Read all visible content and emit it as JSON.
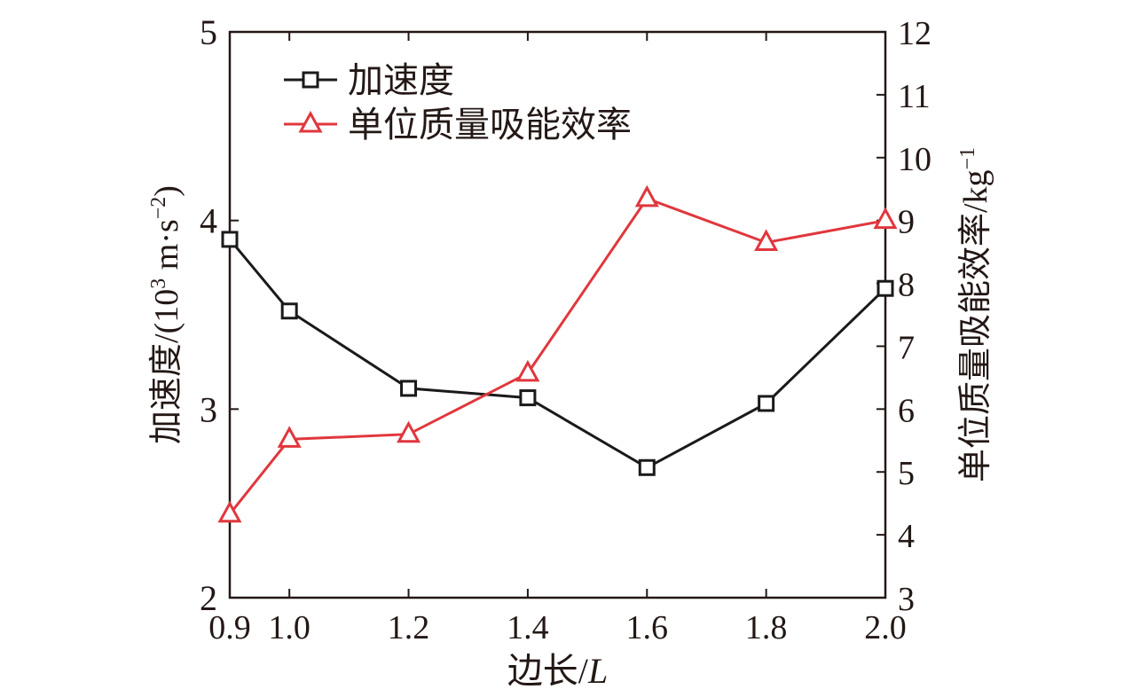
{
  "chart_data": {
    "type": "line",
    "title": "",
    "x": [
      "0.9",
      "1.0",
      "1.2",
      "1.4",
      "1.6",
      "1.8",
      "2.0"
    ],
    "xlabel": "边长/",
    "xlabel_italic": "L",
    "xlim": [
      0.9,
      2.0
    ],
    "x_ticks": [
      "0.9",
      "1.0",
      "1.2",
      "1.4",
      "1.6",
      "1.8",
      "2.0"
    ],
    "left_axis": {
      "label": "加速度/(10",
      "label_sup1": "3",
      "label_mid": " m·s",
      "label_sup2": "−2",
      "label_end": ")",
      "ylim": [
        2,
        5
      ],
      "ticks": [
        "2",
        "3",
        "4",
        "5"
      ]
    },
    "right_axis": {
      "label": "单位质量吸能效率/kg",
      "label_sup": "−1",
      "ylim": [
        3,
        12
      ],
      "ticks": [
        "3",
        "4",
        "5",
        "6",
        "7",
        "8",
        "9",
        "10",
        "11",
        "12"
      ]
    },
    "legend_position": "top-left",
    "series": [
      {
        "name": "加速度",
        "axis": "left",
        "marker": "square",
        "color": "#1a1a1a",
        "values": [
          3.9,
          3.52,
          3.11,
          3.06,
          2.69,
          3.03,
          3.64
        ]
      },
      {
        "name": "单位质量吸能效率",
        "axis": "right",
        "marker": "triangle",
        "color": "#e0373d",
        "values": [
          4.33,
          5.52,
          5.6,
          6.57,
          9.35,
          8.65,
          9.0
        ]
      }
    ]
  }
}
